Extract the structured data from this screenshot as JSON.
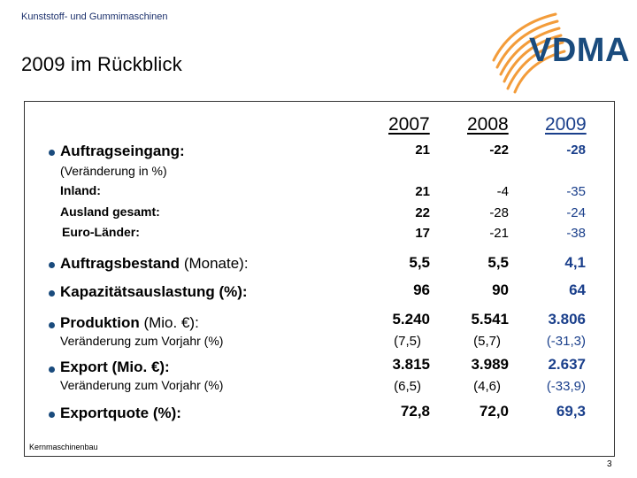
{
  "header": {
    "subtitle": "Kunststoff- und Gummimaschinen",
    "title": "2009 im Rückblick"
  },
  "logo": {
    "text": "VDMA",
    "accent": "#f39c3a",
    "brand": "#1a4b7d"
  },
  "years": [
    "2007",
    "2008",
    "2009"
  ],
  "rows": {
    "auftragseingang": {
      "label": "Auftragseingang:",
      "note": "(Veränderung in %)",
      "values": [
        "21",
        "-22",
        "-28"
      ]
    },
    "inland": {
      "label": "Inland:",
      "values": [
        "21",
        "-4",
        "-35"
      ]
    },
    "ausland": {
      "label": "Ausland gesamt:",
      "values": [
        "22",
        "-28",
        "-24"
      ]
    },
    "euro": {
      "label": "Euro-Länder:",
      "values": [
        "17",
        "-21",
        "-38"
      ]
    },
    "auftragsbestand": {
      "label": "Auftragsbestand",
      "unit": "(Monate):",
      "values": [
        "5,5",
        "5,5",
        "4,1"
      ]
    },
    "kapazitaet": {
      "label": "Kapazitätsauslastung (%):",
      "values": [
        "96",
        "90",
        "64"
      ]
    },
    "produktion": {
      "label": "Produktion",
      "unit": "(Mio. €):",
      "note": "Veränderung zum Vorjahr (%)",
      "values": [
        "5.240",
        "5.541",
        "3.806"
      ],
      "changes": [
        "(7,5)",
        "(5,7)",
        "(-31,3)"
      ]
    },
    "export": {
      "label": "Export (Mio. €):",
      "note": "Veränderung zum Vorjahr (%)",
      "values": [
        "3.815",
        "3.989",
        "2.637"
      ],
      "changes": [
        "(6,5)",
        "(4,6)",
        "(-33,9)"
      ]
    },
    "exportquote": {
      "label": "Exportquote (%):",
      "values": [
        "72,8",
        "72,0",
        "69,3"
      ]
    }
  },
  "footer": {
    "note": "Kernmaschinenbau",
    "page": "3"
  }
}
